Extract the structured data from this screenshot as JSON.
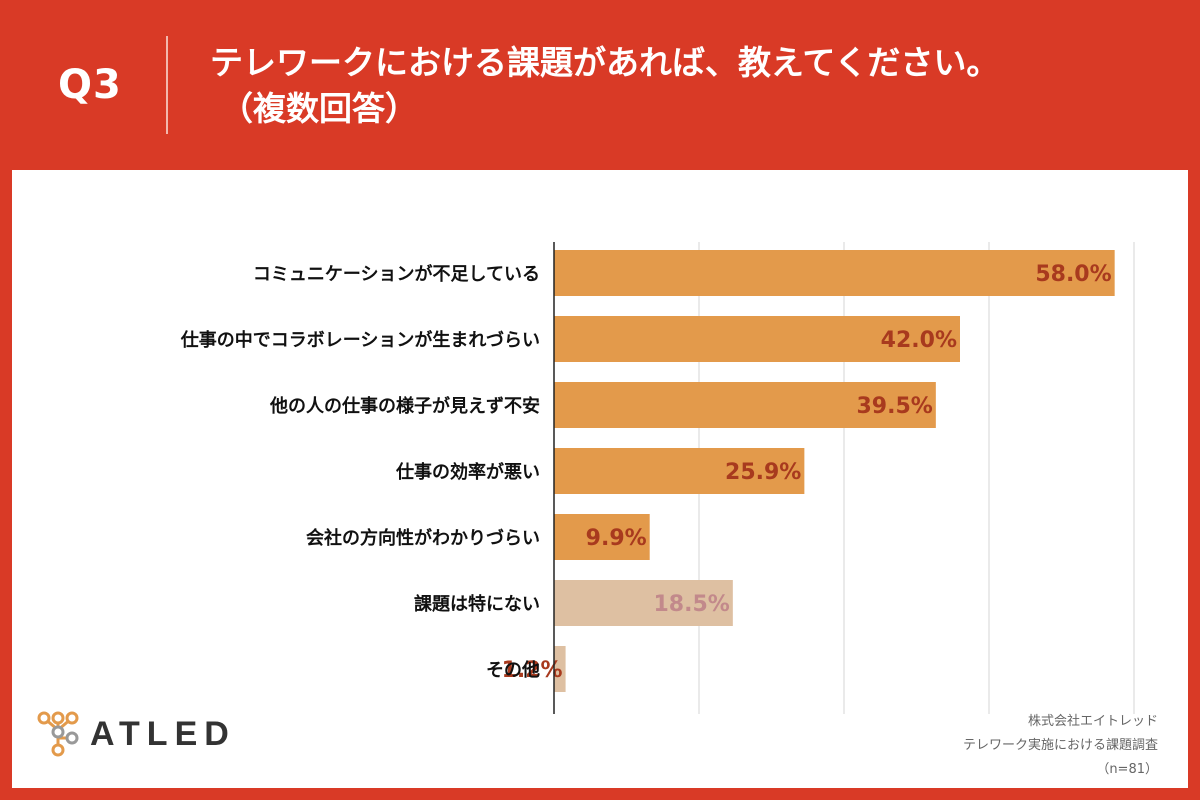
{
  "header": {
    "question_no": "Q3",
    "title_line1": "テレワークにおける課題があれば、教えてください。",
    "title_line2": "（複数回答）"
  },
  "chart_data": {
    "type": "bar",
    "orientation": "horizontal",
    "categories": [
      "コミュニケーションが不足している",
      "仕事の中でコラボレーションが生まれづらい",
      "他の人の仕事の様子が見えず不安",
      "仕事の効率が悪い",
      "会社の方向性がわかりづらい",
      "課題は特にない",
      "その他"
    ],
    "values": [
      58.0,
      42.0,
      39.5,
      25.9,
      9.9,
      18.5,
      1.2
    ],
    "labels": [
      "58.0%",
      "42.0%",
      "39.5%",
      "25.9%",
      "9.9%",
      "18.5%",
      "1.2%"
    ],
    "xlim": [
      0,
      60
    ],
    "grid_step": 15,
    "grid": true,
    "colors": [
      "#e39a4b",
      "#e39a4b",
      "#e39a4b",
      "#e39a4b",
      "#e39a4b",
      "#dec0a2",
      "#dec0a2"
    ],
    "label_colors": [
      "#a83a1e",
      "#a83a1e",
      "#a83a1e",
      "#a83a1e",
      "#a83a1e",
      "#c2898b",
      "#a83a1e"
    ]
  },
  "logo": {
    "text": "ATLED"
  },
  "footer": {
    "company": "株式会社エイトレッド",
    "survey": "テレワーク実施における課題調査",
    "sample": "（n=81）"
  }
}
